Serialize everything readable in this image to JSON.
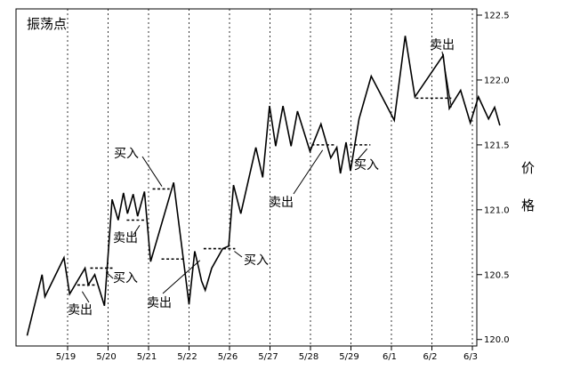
{
  "chart_data": {
    "type": "line",
    "title": "振荡点",
    "ylabel": "价格",
    "xlabel": "",
    "ylim": [
      119.95,
      122.5
    ],
    "y_ticks": [
      120.0,
      120.5,
      121.0,
      121.5,
      122.0,
      122.5
    ],
    "y_tick_labels": [
      "120.0",
      "120.5",
      "121.0",
      "121.5",
      "122.0",
      "122.5"
    ],
    "grid": "vertical date lines",
    "legend": "none",
    "x_categories": [
      "5/19",
      "5/20",
      "5/21",
      "5/22",
      "5/26",
      "5/27",
      "5/28",
      "5/29",
      "6/1",
      "6/2",
      "6/3"
    ],
    "series": [
      {
        "points": [
          [
            0.0,
            120.03
          ],
          [
            0.37,
            120.5
          ],
          [
            0.44,
            120.33
          ],
          [
            0.91,
            120.63
          ],
          [
            1.05,
            120.35
          ],
          [
            1.43,
            120.55
          ],
          [
            1.51,
            120.42
          ],
          [
            1.67,
            120.5
          ],
          [
            1.91,
            120.26
          ],
          [
            2.1,
            121.08
          ],
          [
            2.25,
            120.92
          ],
          [
            2.38,
            121.13
          ],
          [
            2.48,
            120.97
          ],
          [
            2.62,
            121.12
          ],
          [
            2.73,
            120.95
          ],
          [
            2.9,
            121.14
          ],
          [
            3.05,
            120.6
          ],
          [
            3.62,
            121.21
          ],
          [
            3.86,
            120.62
          ],
          [
            4.0,
            120.27
          ],
          [
            4.14,
            120.68
          ],
          [
            4.24,
            120.55
          ],
          [
            4.31,
            120.45
          ],
          [
            4.4,
            120.38
          ],
          [
            4.56,
            120.55
          ],
          [
            4.83,
            120.7
          ],
          [
            4.98,
            120.72
          ],
          [
            5.1,
            121.19
          ],
          [
            5.28,
            120.97
          ],
          [
            5.65,
            121.48
          ],
          [
            5.82,
            121.25
          ],
          [
            5.99,
            121.8
          ],
          [
            6.14,
            121.49
          ],
          [
            6.32,
            121.8
          ],
          [
            6.52,
            121.49
          ],
          [
            6.68,
            121.76
          ],
          [
            6.99,
            121.45
          ],
          [
            7.26,
            121.66
          ],
          [
            7.5,
            121.4
          ],
          [
            7.65,
            121.48
          ],
          [
            7.74,
            121.28
          ],
          [
            7.88,
            121.52
          ],
          [
            7.99,
            121.3
          ],
          [
            8.2,
            121.7
          ],
          [
            8.5,
            122.03
          ],
          [
            9.07,
            121.69
          ],
          [
            9.34,
            122.34
          ],
          [
            9.58,
            121.87
          ],
          [
            10.28,
            122.19
          ],
          [
            10.43,
            121.78
          ],
          [
            10.71,
            121.92
          ],
          [
            10.95,
            121.67
          ],
          [
            11.15,
            121.87
          ],
          [
            11.4,
            121.7
          ],
          [
            11.55,
            121.79
          ],
          [
            11.68,
            121.65
          ]
        ]
      }
    ],
    "annotations": [
      {
        "label": "卖出",
        "level": 120.42,
        "x_from": 1.24,
        "x_to": 1.68,
        "arrow_to": [
          1.36,
          120.37
        ]
      },
      {
        "label": "买入",
        "level": 120.55,
        "x_from": 1.56,
        "x_to": 2.15,
        "arrow_to": [
          1.95,
          120.52
        ]
      },
      {
        "label": "卖出",
        "level": 120.92,
        "x_from": 2.46,
        "x_to": 2.91,
        "arrow_to": [
          2.78,
          120.88
        ]
      },
      {
        "label": "买入",
        "level": 121.16,
        "x_from": 3.1,
        "x_to": 3.52,
        "arrow_to": [
          3.33,
          121.18
        ]
      },
      {
        "label": "卖出",
        "level": 120.62,
        "x_from": 3.32,
        "x_to": 3.92,
        "arrow_to": [
          4.27,
          120.61
        ]
      },
      {
        "label": "买入",
        "level": 120.7,
        "x_from": 4.36,
        "x_to": 5.14,
        "arrow_to": [
          5.12,
          120.68
        ]
      },
      {
        "label": "卖出",
        "level": 121.5,
        "x_from": 7.03,
        "x_to": 7.61,
        "arrow_to": [
          7.3,
          121.46
        ]
      },
      {
        "label": "买入",
        "level": 121.5,
        "x_from": 7.97,
        "x_to": 8.48,
        "arrow_to": [
          8.4,
          121.47
        ]
      },
      {
        "label": "卖出",
        "level": 121.86,
        "x_from": 9.6,
        "x_to": 10.48,
        "arrow_to": [
          10.48,
          121.79
        ]
      }
    ]
  }
}
